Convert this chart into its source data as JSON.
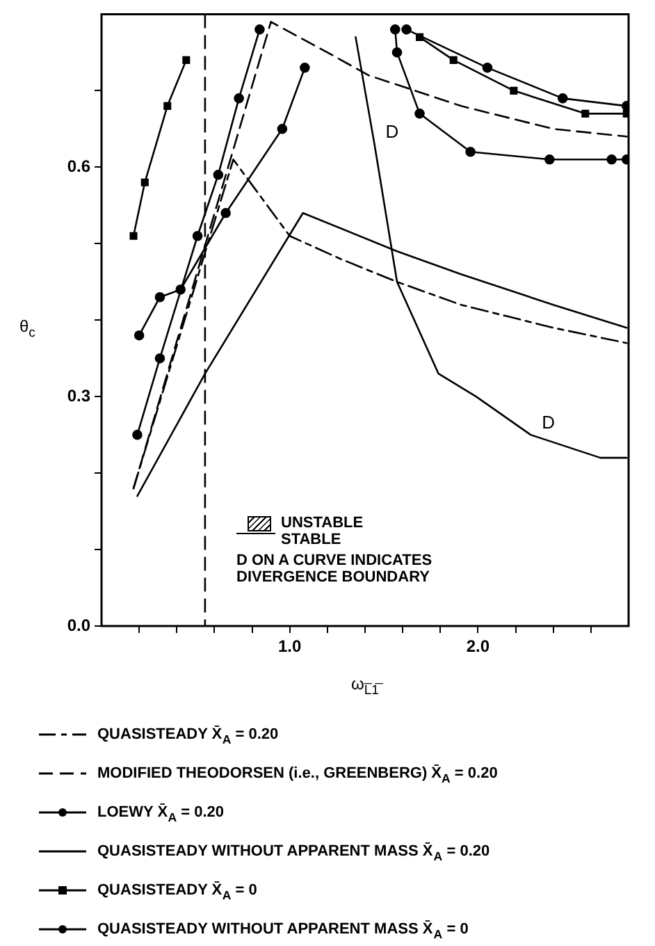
{
  "chart_data": {
    "type": "line",
    "xlabel": "ω$_{L̅1̅}$",
    "ylabel": "θ$_{c}$",
    "xlim": [
      0,
      2.8
    ],
    "ylim": [
      0,
      0.8
    ],
    "xticks": [
      {
        "value": 0.2,
        "label": null
      },
      {
        "value": 0.4,
        "label": null
      },
      {
        "value": 0.6,
        "label": null
      },
      {
        "value": 0.8,
        "label": null
      },
      {
        "value": 1.0,
        "label": "1.0"
      },
      {
        "value": 1.2,
        "label": null
      },
      {
        "value": 1.4,
        "label": null
      },
      {
        "value": 1.6,
        "label": null
      },
      {
        "value": 1.8,
        "label": null
      },
      {
        "value": 2.0,
        "label": "2.0"
      },
      {
        "value": 2.2,
        "label": null
      },
      {
        "value": 2.4,
        "label": null
      },
      {
        "value": 2.6,
        "label": null
      }
    ],
    "yticks": [
      {
        "value": 0,
        "label": "0.0"
      },
      {
        "value": 0.1,
        "label": null
      },
      {
        "value": 0.2,
        "label": null
      },
      {
        "value": 0.3,
        "label": "0.3"
      },
      {
        "value": 0.4,
        "label": null
      },
      {
        "value": 0.5,
        "label": null
      },
      {
        "value": 0.6,
        "label": "0.6"
      },
      {
        "value": 0.7,
        "label": null
      }
    ],
    "grid": false,
    "legend": "bottom",
    "series": [
      {
        "name": "QUASISTEADY X̄$_{A}$ = 0.20",
        "color": "#000000",
        "line_style": "dashdot",
        "marker": "none",
        "x": [
          0.17,
          0.7,
          1.0,
          1.27,
          1.57,
          1.91,
          2.4,
          2.79
        ],
        "values": [
          0.18,
          0.61,
          0.51,
          0.48,
          0.45,
          0.42,
          0.39,
          0.37
        ]
      },
      {
        "name": "MODIFIED THEODORSEN (i.e., GREENBERG) X̄$_{A}$ = 0.20",
        "color": "#000000",
        "line_style": "dashed",
        "marker": "none",
        "x": [
          0.17,
          0.9,
          1.2,
          1.42,
          1.91,
          2.4,
          2.79
        ],
        "values": [
          0.18,
          0.79,
          0.75,
          0.72,
          0.68,
          0.65,
          0.64
        ]
      },
      {
        "name": "LOEWY X̄$_{A}$ = 0.20",
        "color": "#000000",
        "line_style": "solid",
        "marker": "circle",
        "x": [
          0.2,
          0.31,
          0.42,
          0.66,
          0.96,
          1.08,
          null,
          1.56,
          1.57,
          1.69,
          1.96,
          2.38,
          2.71,
          2.79
        ],
        "values": [
          0.38,
          0.43,
          0.44,
          0.54,
          0.65,
          0.73,
          null,
          0.78,
          0.75,
          0.67,
          0.62,
          0.61,
          0.61,
          0.61
        ]
      },
      {
        "name": "QUASISTEADY WITHOUT APPARENT MASS X̄$_{A}$ = 0.20",
        "color": "#000000",
        "line_style": "solid",
        "marker": "none",
        "x": [
          0.19,
          0.55,
          1.07,
          1.57,
          1.91,
          2.4,
          2.79
        ],
        "values": [
          0.17,
          0.33,
          0.54,
          0.49,
          0.46,
          0.42,
          0.39
        ]
      },
      {
        "name": "QUASISTEADY X̄$_{A}$ = 0",
        "color": "#000000",
        "line_style": "solid",
        "marker": "square",
        "x": [
          0.17,
          0.23,
          0.35,
          0.45,
          null,
          1.69,
          1.87,
          2.19,
          2.57,
          2.79
        ],
        "values": [
          0.51,
          0.58,
          0.68,
          0.74,
          null,
          0.77,
          0.74,
          0.7,
          0.67,
          0.67
        ]
      },
      {
        "name": "QUASISTEADY WITHOUT APPARENT MASS X̄$_{A}$ = 0",
        "color": "#000000",
        "line_style": "solid",
        "marker": "circle",
        "x": [
          0.19,
          0.31,
          0.51,
          0.62,
          0.73,
          0.84,
          null,
          1.62,
          2.05,
          2.45,
          2.79
        ],
        "values": [
          0.25,
          0.35,
          0.51,
          0.59,
          0.69,
          0.78,
          null,
          0.78,
          0.73,
          0.69,
          0.68
        ]
      },
      {
        "color": "#000000",
        "line_style": "solid",
        "marker": "none",
        "x": [
          1.35,
          1.45,
          1.57,
          1.79,
          1.99,
          2.28,
          2.65,
          2.79
        ],
        "values": [
          0.77,
          0.63,
          0.45,
          0.33,
          0.3,
          0.25,
          0.22,
          0.22
        ]
      }
    ],
    "ref_lines": [
      {
        "axis": "x",
        "value": 0.55,
        "line_style": "dashed",
        "color": "#000000"
      }
    ],
    "annotations": [
      "UNSTABLE",
      "STABLE",
      "D ON A CURVE INDICATES DIVERGENCE BOUNDARY",
      {
        "text": "D",
        "x": 1.45,
        "y": 0.63
      },
      {
        "text": "D",
        "x": 2.28,
        "y": 0.25
      }
    ]
  }
}
